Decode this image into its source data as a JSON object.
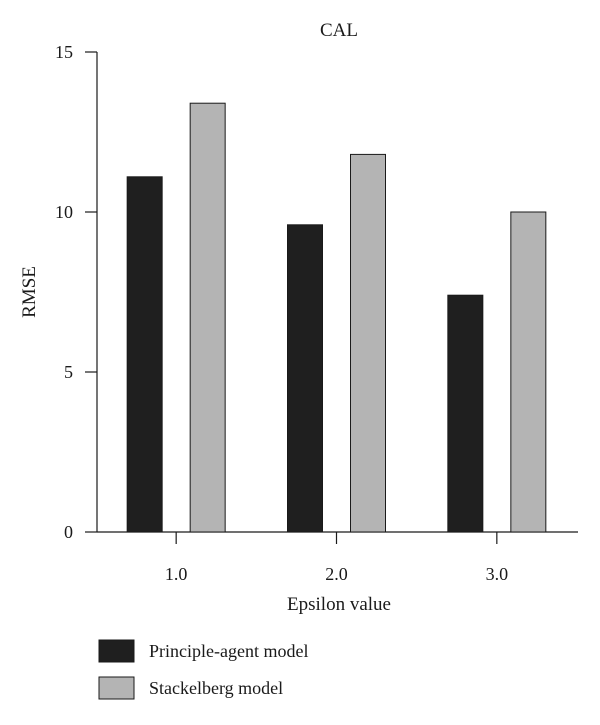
{
  "chart_data": {
    "type": "bar",
    "title": "CAL",
    "xlabel": "Epsilon value",
    "ylabel": "RMSE",
    "categories": [
      "1.0",
      "2.0",
      "3.0"
    ],
    "yticks": [
      "0",
      "5",
      "10",
      "15"
    ],
    "ylim": [
      0,
      15
    ],
    "grid": false,
    "legend_position": "bottom-left",
    "series": [
      {
        "name": "Principle-agent model",
        "values": [
          11.1,
          9.6,
          7.4
        ],
        "color": "#1f1f1f"
      },
      {
        "name": "Stackelberg model",
        "values": [
          13.4,
          11.8,
          10.0
        ],
        "color": "#b4b4b4"
      }
    ]
  }
}
